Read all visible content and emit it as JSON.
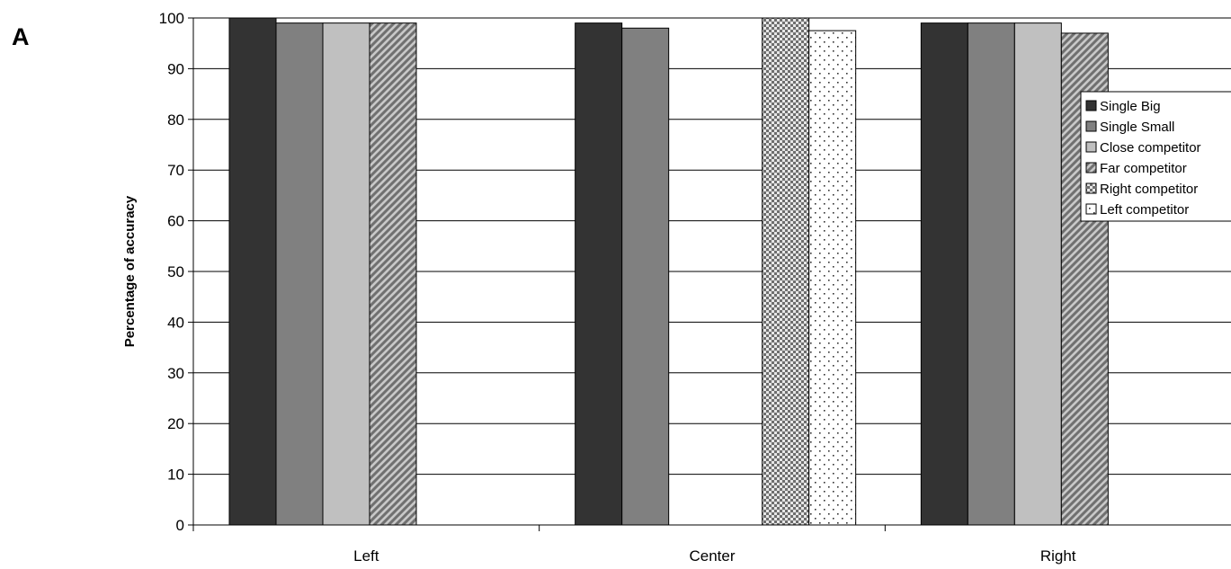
{
  "panel_label": "A",
  "chart_data": {
    "type": "bar",
    "title": "",
    "xlabel": "",
    "ylabel": "Percentage of accuracy",
    "ylim": [
      0,
      100
    ],
    "yticks": [
      "0",
      "10",
      "20",
      "30",
      "40",
      "50",
      "60",
      "70",
      "80",
      "90",
      "100"
    ],
    "grid": true,
    "legend_position": "right",
    "categories": [
      "Left",
      "Center",
      "Right"
    ],
    "series": [
      {
        "name": "Single Big",
        "pattern": "solid",
        "color": "#333333",
        "values": [
          100,
          99,
          99
        ]
      },
      {
        "name": "Single Small",
        "pattern": "solid",
        "color": "#808080",
        "values": [
          99,
          98,
          99
        ]
      },
      {
        "name": "Close competitor",
        "pattern": "solid",
        "color": "#c0c0c0",
        "values": [
          99,
          null,
          99
        ]
      },
      {
        "name": "Far competitor",
        "pattern": "diagonal-stripes",
        "color": "#808080",
        "values": [
          99,
          null,
          97
        ]
      },
      {
        "name": "Right competitor",
        "pattern": "checker",
        "color": "#a0a0a0",
        "values": [
          null,
          100,
          null
        ]
      },
      {
        "name": "Left competitor",
        "pattern": "dots",
        "color": "#ffffff",
        "values": [
          null,
          97.5,
          null
        ]
      }
    ]
  }
}
